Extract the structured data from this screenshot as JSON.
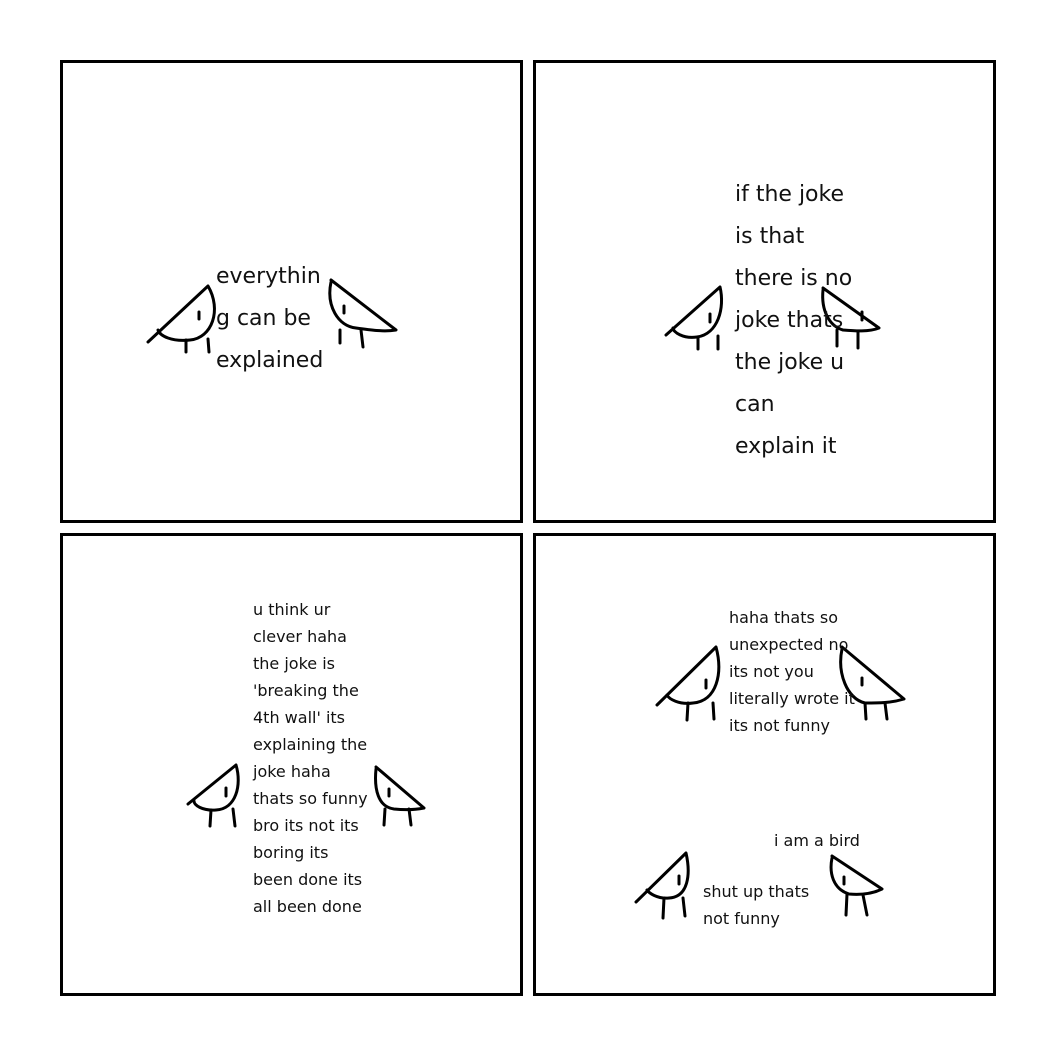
{
  "panels": [
    {
      "lines": [
        "everythin",
        "g can be",
        "explained"
      ]
    },
    {
      "lines": [
        "if the joke",
        "is that",
        "there is no",
        "joke thats",
        "the joke u",
        "can",
        "explain it"
      ]
    },
    {
      "lines": [
        "u think ur",
        "clever haha",
        "the joke is",
        "'breaking the",
        "4th wall' its",
        "explaining the",
        "joke haha",
        "thats so funny",
        "bro its not its",
        "boring its",
        "been done its",
        "all been done"
      ]
    },
    {
      "top_lines": [
        "haha thats so",
        "unexpected no",
        "its not you",
        "literally wrote it",
        "its not funny"
      ],
      "bird_line": "i am a bird",
      "bottom_lines": [
        "shut up thats",
        "not funny"
      ]
    }
  ]
}
